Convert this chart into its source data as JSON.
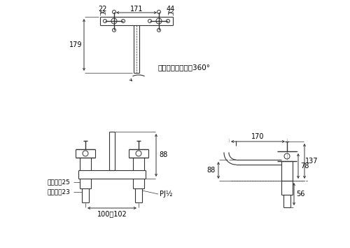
{
  "bg_color": "#ffffff",
  "line_color": "#333333",
  "text_color": "#000000",
  "fig_width": 5.0,
  "fig_height": 3.54,
  "dpi": 100,
  "annotations": {
    "dim_22": "22",
    "dim_171": "171",
    "dim_44": "44",
    "dim_179": "179",
    "spout_text": "スパウト回転觓度360°",
    "dim_170": "170",
    "dim_88": "88",
    "dim_137": "137",
    "dim_78": "78",
    "dim_56": "56",
    "hex25": "六角対辺25",
    "hex23": "六角対辺23",
    "pj": "PJ½",
    "pitch": "100～102"
  }
}
